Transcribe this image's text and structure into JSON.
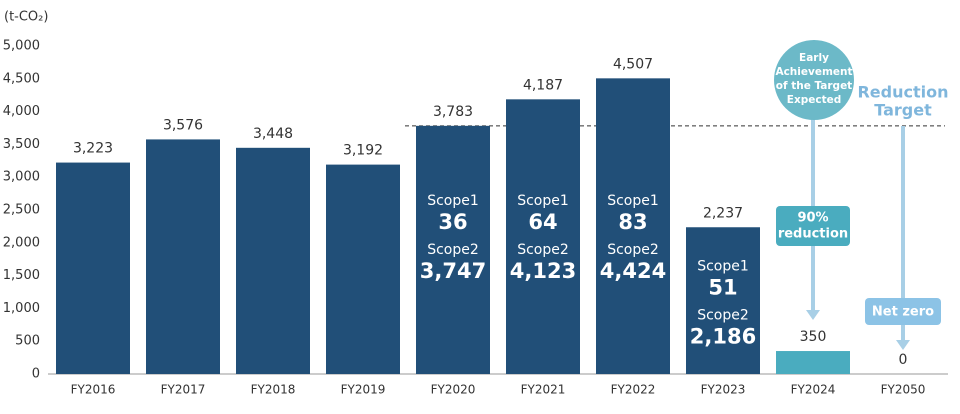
{
  "chart_data": {
    "type": "bar",
    "unit": "(t-CO₂)",
    "categories": [
      "FY2016",
      "FY2017",
      "FY2018",
      "FY2019",
      "FY2020",
      "FY2021",
      "FY2022",
      "FY2023",
      "FY2024",
      "FY2050"
    ],
    "values": [
      3223,
      3576,
      3448,
      3192,
      3783,
      4187,
      4507,
      2237,
      350,
      0
    ],
    "value_labels": [
      "3,223",
      "3,576",
      "3,448",
      "3,192",
      "3,783",
      "4,187",
      "4,507",
      "2,237",
      "350",
      "0"
    ],
    "colors": [
      "#214f78",
      "#214f78",
      "#214f78",
      "#214f78",
      "#214f78",
      "#214f78",
      "#214f78",
      "#214f78",
      "#4aacbf",
      "#214f78"
    ],
    "scope1": {
      "name": "Scope1",
      "values": [
        null,
        null,
        null,
        null,
        36,
        64,
        83,
        51,
        null,
        null
      ]
    },
    "scope2": {
      "name": "Scope2",
      "values": [
        null,
        null,
        null,
        null,
        3747,
        4123,
        4424,
        2186,
        null,
        null
      ],
      "value_labels": [
        null,
        null,
        null,
        null,
        "3,747",
        "4,123",
        "4,424",
        "2,186",
        null,
        null
      ]
    },
    "ylim": [
      0,
      5000
    ],
    "yticks": [
      0,
      {
        "value": 500,
        "label": "500"
      },
      {
        "value": 1000,
        "label": "1,000"
      },
      {
        "value": 1500,
        "label": "1,500"
      },
      {
        "value": 2000,
        "label": "2,000"
      },
      {
        "value": 2500,
        "label": "2,500"
      },
      {
        "value": 3000,
        "label": "3,000"
      },
      {
        "value": 3500,
        "label": "3,500"
      },
      {
        "value": 4000,
        "label": "4,000"
      },
      {
        "value": 4500,
        "label": "4,500"
      },
      {
        "value": 5000,
        "label": "5,000"
      }
    ],
    "grid": false,
    "early_note": [
      "Early",
      "Achievement",
      "of the Target",
      "Expected"
    ],
    "reduction_target": [
      "Reduction",
      "Target"
    ],
    "reduction_box": [
      "90%",
      "reduction"
    ],
    "net_zero": "Net zero"
  }
}
